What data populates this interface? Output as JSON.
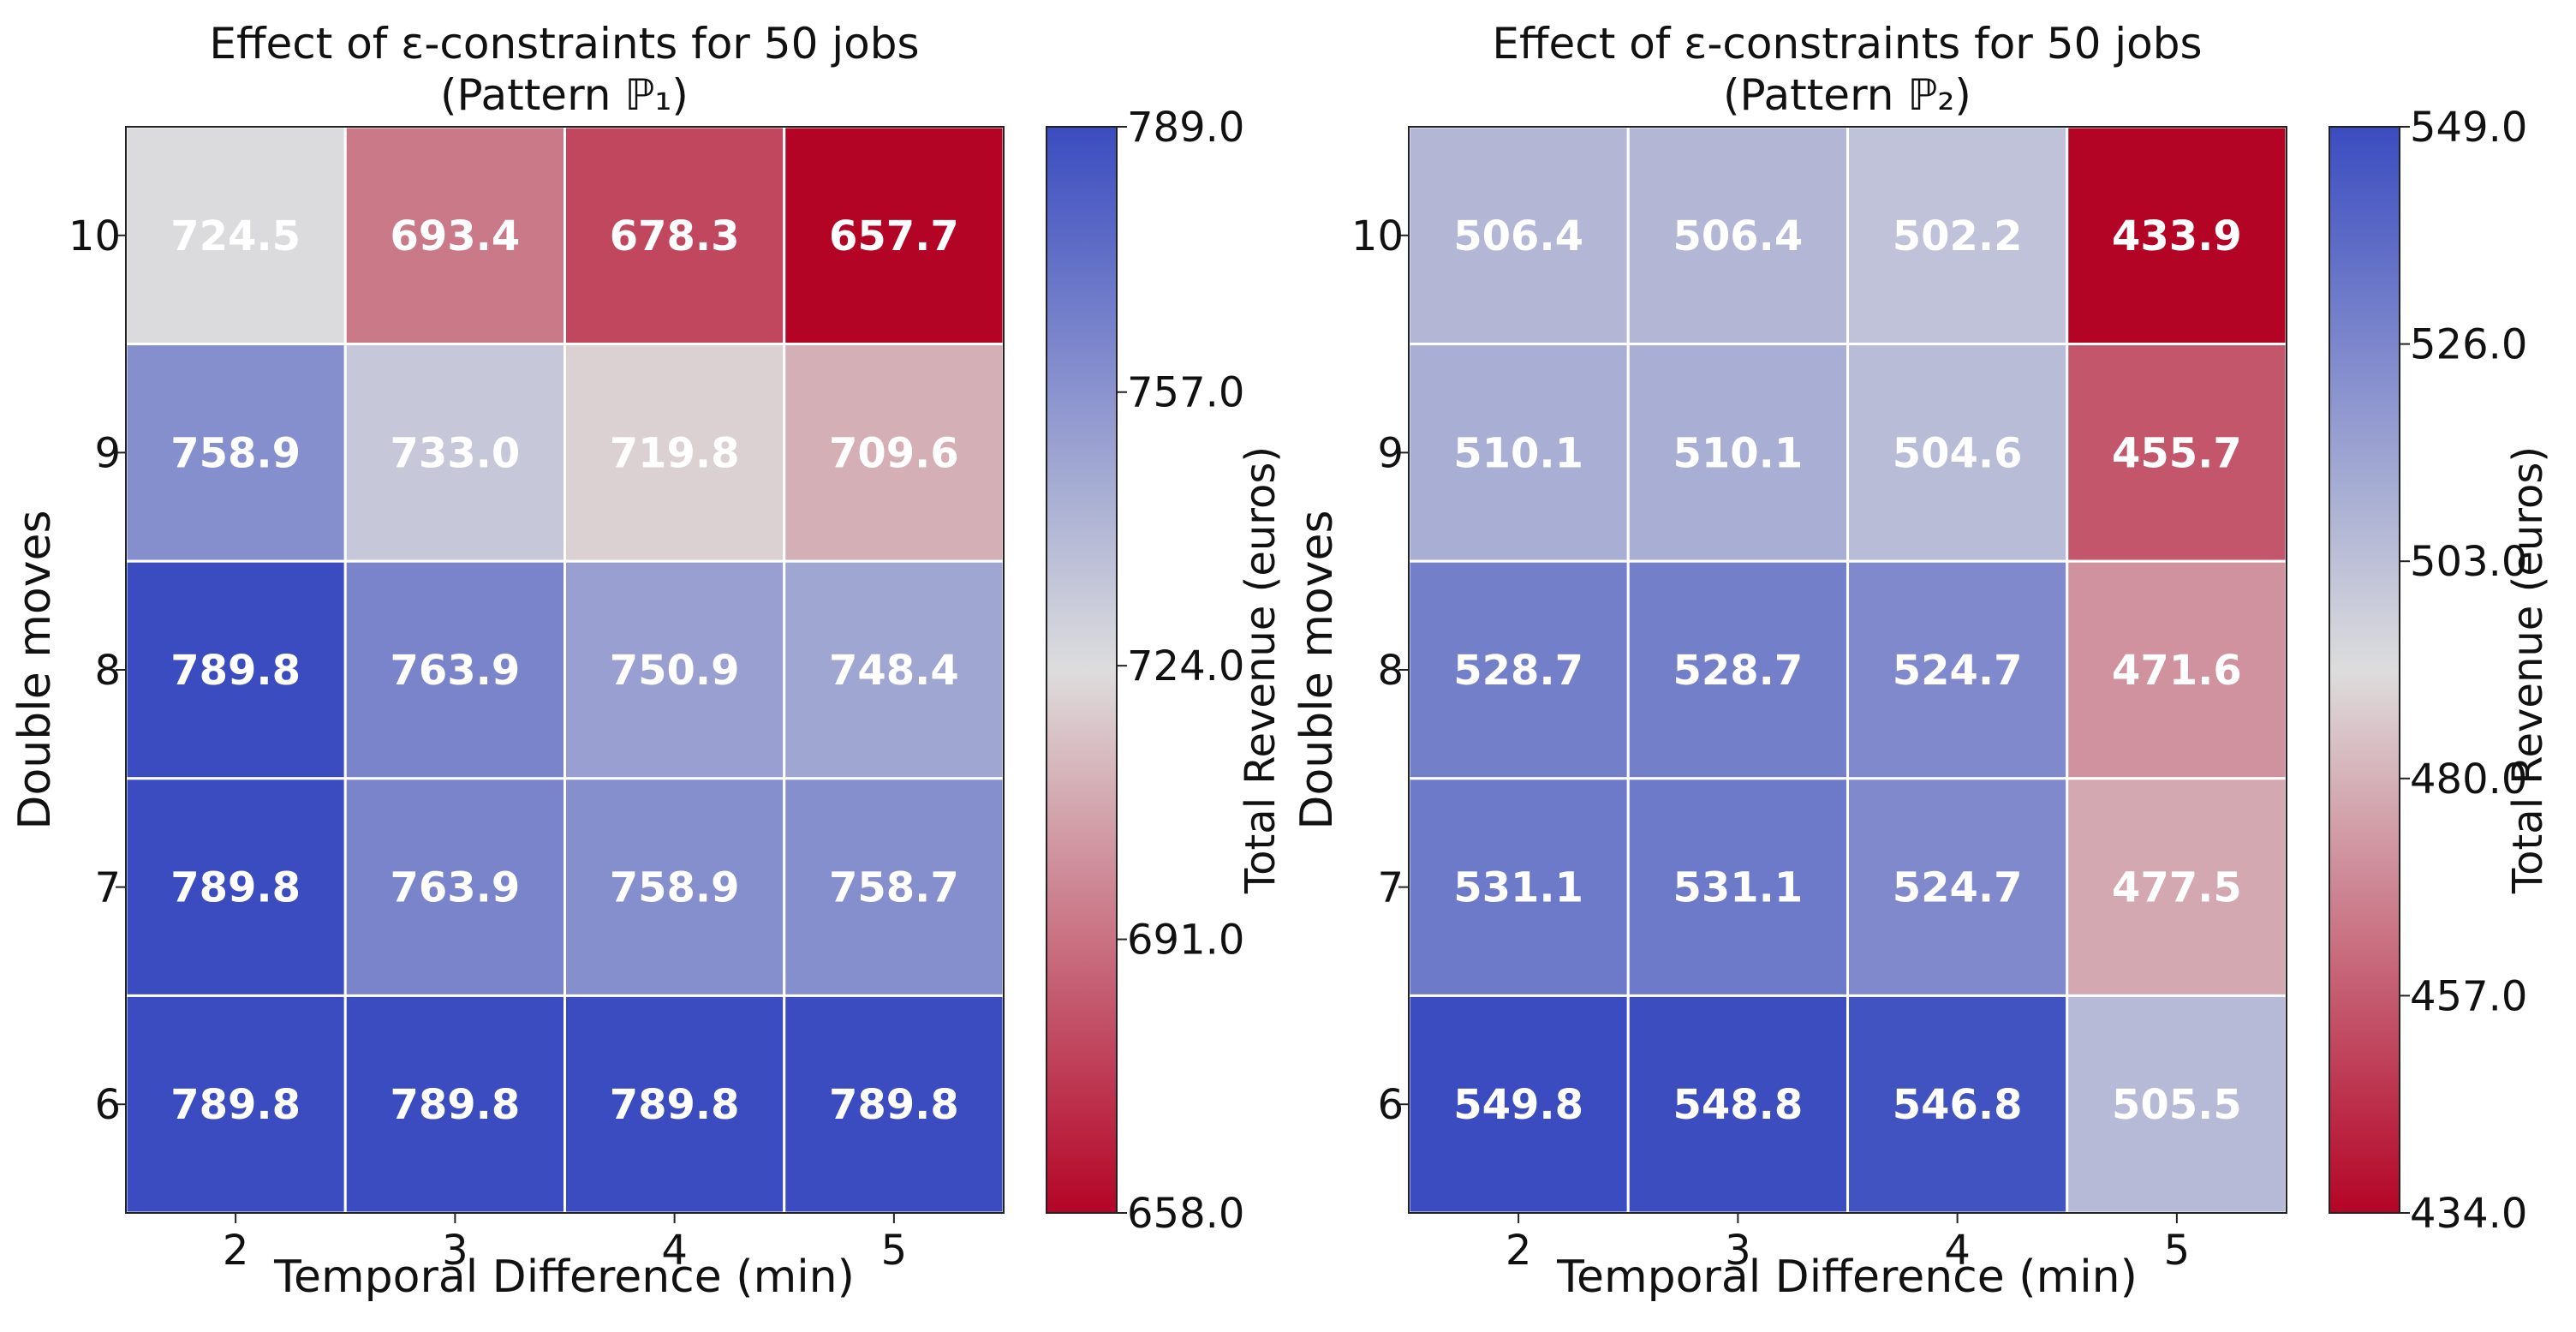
{
  "chart_data": [
    {
      "type": "heatmap",
      "title_line1": "Effect of ε-constraints for 50 jobs",
      "title_line2": "(Pattern ℙ₁)",
      "xlabel": "Temporal Difference (min)",
      "ylabel": "Double moves",
      "x": [
        "2",
        "3",
        "4",
        "5"
      ],
      "y": [
        "10",
        "9",
        "8",
        "7",
        "6"
      ],
      "values": [
        [
          724.5,
          693.4,
          678.3,
          657.7
        ],
        [
          758.9,
          733.0,
          719.8,
          709.6
        ],
        [
          789.8,
          763.9,
          750.9,
          748.4
        ],
        [
          789.8,
          763.9,
          758.9,
          758.7
        ],
        [
          789.8,
          789.8,
          789.8,
          789.8
        ]
      ],
      "cell_labels": [
        [
          "724.5",
          "693.4",
          "678.3",
          "657.7"
        ],
        [
          "758.9",
          "733.0",
          "719.8",
          "709.6"
        ],
        [
          "789.8",
          "763.9",
          "750.9",
          "748.4"
        ],
        [
          "789.8",
          "763.9",
          "758.9",
          "758.7"
        ],
        [
          "789.8",
          "789.8",
          "789.8",
          "789.8"
        ]
      ],
      "colorbar": {
        "label": "Total Revenue (euros)",
        "min": 658.0,
        "max": 789.0,
        "ticks": [
          658.0,
          691.0,
          724.0,
          757.0,
          789.0
        ],
        "tick_labels": [
          "658.0",
          "691.0",
          "724.0",
          "757.0",
          "789.0"
        ],
        "colormap": "coolwarm_r"
      }
    },
    {
      "type": "heatmap",
      "title_line1": "Effect of ε-constraints for 50 jobs",
      "title_line2": "(Pattern ℙ₂)",
      "xlabel": "Temporal Difference (min)",
      "ylabel": "Double moves",
      "x": [
        "2",
        "3",
        "4",
        "5"
      ],
      "y": [
        "10",
        "9",
        "8",
        "7",
        "6"
      ],
      "values": [
        [
          506.4,
          506.4,
          502.2,
          433.9
        ],
        [
          510.1,
          510.1,
          504.6,
          455.7
        ],
        [
          528.7,
          528.7,
          524.7,
          471.6
        ],
        [
          531.1,
          531.1,
          524.7,
          477.5
        ],
        [
          549.8,
          548.8,
          546.8,
          505.5
        ]
      ],
      "cell_labels": [
        [
          "506.4",
          "506.4",
          "502.2",
          "433.9"
        ],
        [
          "510.1",
          "510.1",
          "504.6",
          "455.7"
        ],
        [
          "528.7",
          "528.7",
          "524.7",
          "471.6"
        ],
        [
          "531.1",
          "531.1",
          "524.7",
          "477.5"
        ],
        [
          "549.8",
          "548.8",
          "546.8",
          "505.5"
        ]
      ],
      "colorbar": {
        "label": "Total Revenue (euros)",
        "min": 434.0,
        "max": 549.0,
        "ticks": [
          434.0,
          457.0,
          480.0,
          503.0,
          526.0,
          549.0
        ],
        "tick_labels": [
          "434.0",
          "457.0",
          "480.0",
          "503.0",
          "526.0",
          "549.0"
        ],
        "colormap": "coolwarm_r"
      }
    }
  ],
  "colors": {
    "cold": "#3b4cc0",
    "neutral": "#dddddd",
    "warm": "#b40426",
    "grid": "#ffffff",
    "cell_text": "#ffffff"
  }
}
